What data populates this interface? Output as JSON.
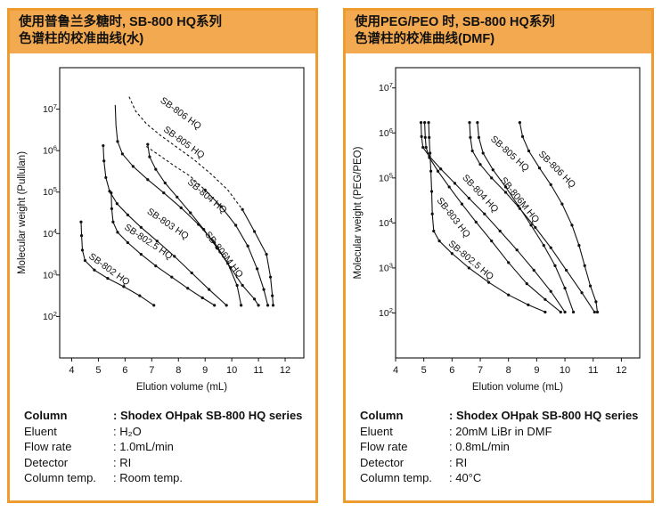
{
  "accent": {
    "panel_border": "#EE9C2F",
    "header_background": "#F2A94F",
    "header_text": "#111111",
    "curve_color": "#111111"
  },
  "panels": [
    {
      "header": {
        "line1": "使用普鲁兰多糖时, SB-800 HQ系列",
        "line2": "色谱柱的校准曲线(水)"
      },
      "info": {
        "rows": [
          {
            "label": "Column",
            "value": ": Shodex OHpak SB-800 HQ series"
          },
          {
            "label": "Eluent",
            "value": ": H₂O"
          },
          {
            "label": "Flow rate",
            "value": ": 1.0mL/min"
          },
          {
            "label": "Detector",
            "value": ": RI"
          },
          {
            "label": "Column temp.",
            "value": ": Room temp."
          }
        ]
      }
    },
    {
      "header": {
        "line1": "使用PEG/PEO 时, SB-800 HQ系列",
        "line2": "色谱柱的校准曲线(DMF)"
      },
      "info": {
        "rows": [
          {
            "label": "Column",
            "value": ": Shodex OHpak SB-800 HQ series"
          },
          {
            "label": "Eluent",
            "value": ": 20mM LiBr in DMF"
          },
          {
            "label": "Flow rate",
            "value": ": 0.8mL/min"
          },
          {
            "label": "Detector",
            "value": ": RI"
          },
          {
            "label": "Column temp.",
            "value": ": 40°C"
          }
        ]
      }
    }
  ],
  "chart_data": [
    {
      "type": "line",
      "title": "使用普鲁兰多糖时, SB-800 HQ系列色谱柱的校准曲线(水)",
      "xlabel": "Elution volume (mL)",
      "ylabel": "Molecular weight (Pullulan)",
      "x_ticks": [
        4,
        5,
        6,
        7,
        8,
        9,
        10,
        11,
        12
      ],
      "xlim": [
        3.55,
        12.7
      ],
      "y_tick_exponents": [
        2,
        3,
        4,
        5,
        6,
        7
      ],
      "ylim_log": [
        1,
        8
      ],
      "y_unit": "log10(molecular weight)",
      "grid": false,
      "legend": "inline-curve-labels",
      "series": [
        {
          "name": "SB-802 HQ",
          "dash_until": 0,
          "marker_from": 0,
          "label": {
            "x": 4.62,
            "y": 3.42,
            "angle": 36
          },
          "points": [
            [
              4.35,
              4.28
            ],
            [
              4.37,
              3.95
            ],
            [
              4.4,
              3.6
            ],
            [
              4.5,
              3.35
            ],
            [
              4.85,
              3.12
            ],
            [
              5.35,
              2.92
            ],
            [
              5.95,
              2.72
            ],
            [
              6.55,
              2.5
            ],
            [
              7.08,
              2.27
            ]
          ]
        },
        {
          "name": "SB-802.5 HQ",
          "dash_until": 0,
          "marker_from": 0,
          "label": {
            "x": 5.95,
            "y": 4.12,
            "angle": 34
          },
          "points": [
            [
              5.48,
              4.98
            ],
            [
              5.5,
              4.6
            ],
            [
              5.55,
              4.28
            ],
            [
              5.72,
              4.03
            ],
            [
              6.1,
              3.78
            ],
            [
              6.6,
              3.5
            ],
            [
              7.15,
              3.22
            ],
            [
              7.75,
              2.95
            ],
            [
              8.35,
              2.68
            ],
            [
              8.9,
              2.45
            ],
            [
              9.35,
              2.27
            ]
          ]
        },
        {
          "name": "SB-803 HQ",
          "dash_until": 0,
          "marker_from": 0,
          "label": {
            "x": 6.8,
            "y": 4.5,
            "angle": 34
          },
          "points": [
            [
              5.18,
              6.12
            ],
            [
              5.21,
              5.75
            ],
            [
              5.28,
              5.35
            ],
            [
              5.42,
              5.02
            ],
            [
              5.7,
              4.72
            ],
            [
              6.1,
              4.45
            ],
            [
              6.6,
              4.15
            ],
            [
              7.2,
              3.82
            ],
            [
              7.85,
              3.45
            ],
            [
              8.5,
              3.05
            ],
            [
              9.15,
              2.65
            ],
            [
              9.8,
              2.27
            ]
          ]
        },
        {
          "name": "SB-804 HQ",
          "dash_until": 0,
          "marker_from": 2,
          "label": {
            "x": 8.32,
            "y": 5.22,
            "angle": 40
          },
          "points": [
            [
              5.63,
              7.1
            ],
            [
              5.66,
              6.6
            ],
            [
              5.72,
              6.22
            ],
            [
              5.9,
              5.92
            ],
            [
              6.3,
              5.62
            ],
            [
              6.85,
              5.3
            ],
            [
              7.45,
              4.98
            ],
            [
              8.1,
              4.62
            ],
            [
              8.75,
              4.22
            ],
            [
              9.35,
              3.78
            ],
            [
              9.85,
              3.28
            ],
            [
              10.2,
              2.75
            ],
            [
              10.35,
              2.27
            ]
          ]
        },
        {
          "name": "SB-805 HQ",
          "dash_until": 4,
          "marker_from": 4,
          "label": {
            "x": 7.42,
            "y": 6.48,
            "angle": 36
          },
          "points": [
            [
              6.8,
              6.1
            ],
            [
              7.3,
              5.88
            ],
            [
              7.85,
              5.63
            ],
            [
              8.45,
              5.38
            ],
            [
              9.0,
              5.05
            ],
            [
              9.6,
              4.65
            ],
            [
              10.15,
              4.2
            ],
            [
              10.6,
              3.7
            ],
            [
              10.95,
              3.15
            ],
            [
              11.2,
              2.65
            ],
            [
              11.35,
              2.27
            ]
          ]
        },
        {
          "name": "SB-806 HQ",
          "dash_until": 8,
          "marker_from": 8,
          "label": {
            "x": 7.3,
            "y": 7.18,
            "angle": 36
          },
          "points": [
            [
              6.15,
              7.3
            ],
            [
              6.4,
              6.95
            ],
            [
              6.8,
              6.65
            ],
            [
              7.3,
              6.38
            ],
            [
              7.9,
              6.1
            ],
            [
              8.55,
              5.8
            ],
            [
              9.2,
              5.45
            ],
            [
              9.85,
              5.05
            ],
            [
              10.4,
              4.58
            ],
            [
              10.85,
              4.05
            ],
            [
              11.3,
              3.5
            ],
            [
              11.45,
              2.95
            ],
            [
              11.52,
              2.5
            ],
            [
              11.55,
              2.27
            ]
          ]
        },
        {
          "name": "SB-806M HQ",
          "dash_until": 0,
          "marker_from": 0,
          "label": {
            "x": 8.98,
            "y": 3.98,
            "angle": 52
          },
          "points": [
            [
              6.85,
              6.15
            ],
            [
              6.92,
              5.85
            ],
            [
              7.15,
              5.55
            ],
            [
              7.5,
              5.22
            ],
            [
              7.95,
              4.88
            ],
            [
              8.45,
              4.5
            ],
            [
              8.95,
              4.1
            ],
            [
              9.45,
              3.65
            ],
            [
              9.95,
              3.18
            ],
            [
              10.4,
              2.75
            ],
            [
              10.85,
              2.42
            ],
            [
              11.0,
              2.27
            ]
          ]
        }
      ]
    },
    {
      "type": "line",
      "title": "使用PEG/PEO 时, SB-800 HQ系列色谱柱的校准曲线(DMF)",
      "xlabel": "Elution volume (mL)",
      "ylabel": "Molecular weight (PEG/PEO)",
      "x_ticks": [
        4,
        5,
        6,
        7,
        8,
        9,
        10,
        11,
        12
      ],
      "xlim": [
        4.0,
        12.65
      ],
      "y_tick_exponents": [
        2,
        3,
        4,
        5,
        6,
        7
      ],
      "ylim_log": [
        1,
        7.45
      ],
      "y_unit": "log10(molecular weight)",
      "grid": false,
      "legend": "inline-curve-labels",
      "series": [
        {
          "name": "SB-802.5 HQ",
          "dash_until": 0,
          "marker_from": 0,
          "label": {
            "x": 5.85,
            "y": 3.52,
            "angle": 40
          },
          "points": [
            [
              5.17,
              6.23
            ],
            [
              5.19,
              5.9
            ],
            [
              5.22,
              5.55
            ],
            [
              5.25,
              5.15
            ],
            [
              5.28,
              4.7
            ],
            [
              5.3,
              4.2
            ],
            [
              5.35,
              3.82
            ],
            [
              5.55,
              3.6
            ],
            [
              6.0,
              3.32
            ],
            [
              6.6,
              3.0
            ],
            [
              7.3,
              2.68
            ],
            [
              8.0,
              2.4
            ],
            [
              8.7,
              2.18
            ],
            [
              9.3,
              2.02
            ]
          ]
        },
        {
          "name": "SB-803 HQ",
          "dash_until": 0,
          "marker_from": 0,
          "label": {
            "x": 5.45,
            "y": 4.5,
            "angle": 52
          },
          "points": [
            [
              5.03,
              6.23
            ],
            [
              5.05,
              5.9
            ],
            [
              5.08,
              5.68
            ],
            [
              5.2,
              5.45
            ],
            [
              5.5,
              5.15
            ],
            [
              5.9,
              4.8
            ],
            [
              6.35,
              4.42
            ],
            [
              6.85,
              4.02
            ],
            [
              7.4,
              3.6
            ],
            [
              8.0,
              3.12
            ],
            [
              8.65,
              2.65
            ],
            [
              9.3,
              2.3
            ],
            [
              9.85,
              2.02
            ]
          ]
        },
        {
          "name": "SB-804 HQ",
          "dash_until": 0,
          "marker_from": 0,
          "label": {
            "x": 6.35,
            "y": 5.0,
            "angle": 47
          },
          "points": [
            [
              4.9,
              6.23
            ],
            [
              4.92,
              5.92
            ],
            [
              4.97,
              5.68
            ],
            [
              5.2,
              5.48
            ],
            [
              5.6,
              5.2
            ],
            [
              6.1,
              4.88
            ],
            [
              6.6,
              4.55
            ],
            [
              7.15,
              4.2
            ],
            [
              7.7,
              3.82
            ],
            [
              8.3,
              3.4
            ],
            [
              8.9,
              2.95
            ],
            [
              9.5,
              2.48
            ],
            [
              10.0,
              2.02
            ]
          ]
        },
        {
          "name": "SB-805 HQ",
          "dash_until": 0,
          "marker_from": 0,
          "label": {
            "x": 7.35,
            "y": 5.85,
            "angle": 42
          },
          "points": [
            [
              6.62,
              6.23
            ],
            [
              6.65,
              5.9
            ],
            [
              6.72,
              5.6
            ],
            [
              7.0,
              5.3
            ],
            [
              7.4,
              5.0
            ],
            [
              7.9,
              4.68
            ],
            [
              8.4,
              4.32
            ],
            [
              8.95,
              3.9
            ],
            [
              9.5,
              3.45
            ],
            [
              10.05,
              2.95
            ],
            [
              10.6,
              2.45
            ],
            [
              11.05,
              2.02
            ]
          ]
        },
        {
          "name": "SB-806M HQ",
          "dash_until": 0,
          "marker_from": 0,
          "label": {
            "x": 7.7,
            "y": 4.95,
            "angle": 51
          },
          "points": [
            [
              6.9,
              6.23
            ],
            [
              6.95,
              5.9
            ],
            [
              7.1,
              5.55
            ],
            [
              7.45,
              5.18
            ],
            [
              7.9,
              4.8
            ],
            [
              8.35,
              4.38
            ],
            [
              8.8,
              3.95
            ],
            [
              9.25,
              3.5
            ],
            [
              9.65,
              3.05
            ],
            [
              10.0,
              2.55
            ],
            [
              10.3,
              2.02
            ]
          ]
        },
        {
          "name": "SB-806 HQ",
          "dash_until": 0,
          "marker_from": 0,
          "label": {
            "x": 9.05,
            "y": 5.52,
            "angle": 45
          },
          "points": [
            [
              8.4,
              6.23
            ],
            [
              8.5,
              5.92
            ],
            [
              8.72,
              5.6
            ],
            [
              9.1,
              5.22
            ],
            [
              9.5,
              4.85
            ],
            [
              9.9,
              4.42
            ],
            [
              10.25,
              3.95
            ],
            [
              10.5,
              3.5
            ],
            [
              10.7,
              3.05
            ],
            [
              10.9,
              2.6
            ],
            [
              11.1,
              2.25
            ],
            [
              11.15,
              2.02
            ]
          ]
        }
      ]
    }
  ]
}
